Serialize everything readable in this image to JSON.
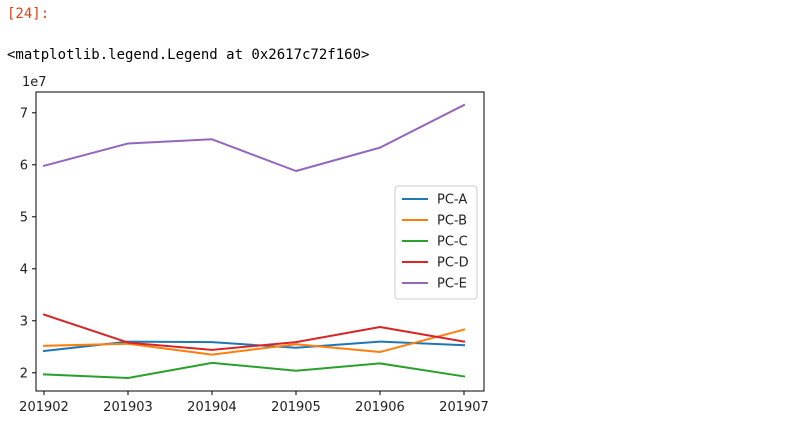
{
  "cell": {
    "prompt": "[24]:",
    "output_text": "<matplotlib.legend.Legend at 0x2617c72f160>"
  },
  "chart_data": {
    "type": "line",
    "x": [
      "201902",
      "201903",
      "201904",
      "201905",
      "201906",
      "201907"
    ],
    "offset_label": "1e7",
    "ylim": [
      1.65,
      7.4
    ],
    "yticks": [
      2,
      3,
      4,
      5,
      6,
      7
    ],
    "grid": false,
    "legend_placement": "center-right",
    "series": [
      {
        "name": "PC-A",
        "color": "#1f77b4",
        "values": [
          2.42,
          2.6,
          2.59,
          2.48,
          2.6,
          2.53
        ]
      },
      {
        "name": "PC-B",
        "color": "#ff7f0e",
        "values": [
          2.52,
          2.56,
          2.35,
          2.55,
          2.4,
          2.83
        ]
      },
      {
        "name": "PC-C",
        "color": "#2ca02c",
        "values": [
          1.97,
          1.9,
          2.19,
          2.04,
          2.18,
          1.93
        ]
      },
      {
        "name": "PC-D",
        "color": "#d62728",
        "values": [
          3.12,
          2.58,
          2.44,
          2.59,
          2.88,
          2.6
        ]
      },
      {
        "name": "PC-E",
        "color": "#9467bd",
        "values": [
          5.98,
          6.41,
          6.49,
          5.88,
          6.33,
          7.15
        ]
      }
    ]
  }
}
